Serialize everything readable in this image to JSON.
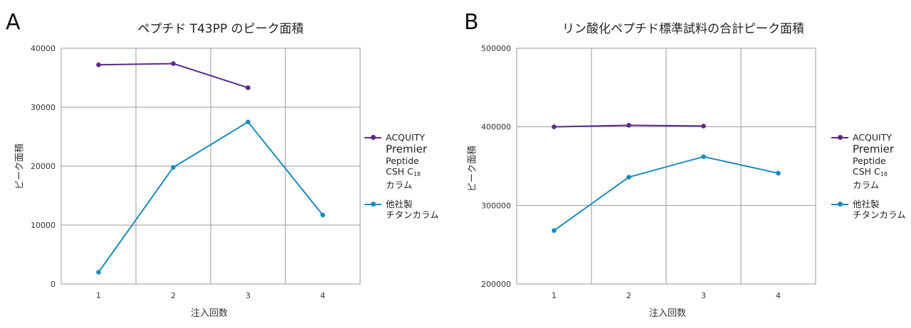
{
  "chart_data": [
    {
      "panel_label": "A",
      "type": "line",
      "title": "ペプチド T43PP のピーク面積",
      "xlabel": "注入回数",
      "ylabel": "ピーク面積",
      "x": [
        1,
        2,
        3,
        4
      ],
      "xlim": [
        0.5,
        4.5
      ],
      "ylim": [
        0,
        40000
      ],
      "yticks": [
        0,
        10000,
        20000,
        30000,
        40000
      ],
      "grid": true,
      "legend_position": "right",
      "series": [
        {
          "name": "ACQUITY Premier Peptide CSH C18 カラム",
          "legend_lines": [
            "ACQUITY",
            "Premier",
            "Peptide",
            "CSH C",
            "カラム"
          ],
          "legend_sub": "18",
          "color": "#5b2a86",
          "x": [
            1,
            2,
            3
          ],
          "values": [
            37200,
            37400,
            33300
          ]
        },
        {
          "name": "他社製 チタンカラム",
          "legend_lines": [
            "他社製",
            "チタンカラム"
          ],
          "color": "#1a8bb8",
          "x": [
            1,
            2,
            3,
            4
          ],
          "values": [
            2000,
            19800,
            27500,
            11700
          ]
        }
      ]
    },
    {
      "panel_label": "B",
      "type": "line",
      "title": "リン酸化ペプチド標準試料の合計ピーク面積",
      "xlabel": "注入回数",
      "ylabel": "ピーク面積",
      "x": [
        1,
        2,
        3,
        4
      ],
      "xlim": [
        0.5,
        4.5
      ],
      "ylim": [
        200000,
        500000
      ],
      "yticks": [
        200000,
        300000,
        400000,
        500000
      ],
      "grid": true,
      "legend_position": "right",
      "series": [
        {
          "name": "ACQUITY Premier Peptide CSH C18 カラム",
          "legend_lines": [
            "ACQUITY",
            "Premier",
            "Peptide",
            "CSH C",
            "カラム"
          ],
          "legend_sub": "18",
          "color": "#5b2a86",
          "x": [
            1,
            2,
            3
          ],
          "values": [
            400000,
            402000,
            401000
          ]
        },
        {
          "name": "他社製 チタンカラム",
          "legend_lines": [
            "他社製",
            "チタンカラム"
          ],
          "color": "#1a8bb8",
          "x": [
            1,
            2,
            3,
            4
          ],
          "values": [
            268000,
            336000,
            362000,
            341000
          ]
        }
      ]
    }
  ]
}
